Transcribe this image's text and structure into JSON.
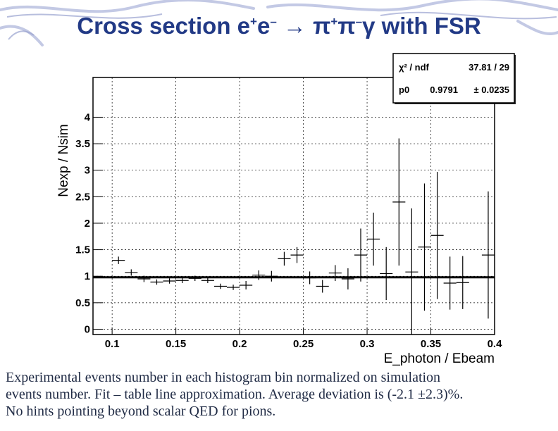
{
  "slide": {
    "title_parts": [
      "Cross section e",
      "+",
      "e",
      "–",
      " → π",
      "+",
      "π",
      "–",
      "γ with FSR"
    ],
    "caption_lines": [
      "Experimental events number in each histogram bin normalized on simulation",
      "events number. Fit – table line approximation. Average deviation is (-2.1 ±2.3)%.",
      "No hints pointing beyond scalar QED for pions."
    ]
  },
  "stats": {
    "chi2_label": "χ² / ndf",
    "chi2_value": "37.81 / 29",
    "p0_label": "p0",
    "p0_value": "0.9791",
    "p0_error": "± 0.0235"
  },
  "chart_data": {
    "type": "scatter",
    "xlabel": "E_photon / Ebeam",
    "ylabel": "Nexp / Nsim",
    "xlim": [
      0.085,
      0.4
    ],
    "ylim": [
      -0.1,
      4.75
    ],
    "x_ticks": [
      "0.1",
      "0.15",
      "0.2",
      "0.25",
      "0.3",
      "0.35",
      "0.4"
    ],
    "x_tick_values": [
      0.1,
      0.15,
      0.2,
      0.25,
      0.3,
      0.35,
      0.4
    ],
    "y_ticks": [
      "0",
      "0.5",
      "1",
      "1.5",
      "2",
      "2.5",
      "3",
      "3.5",
      "4"
    ],
    "y_tick_values": [
      0,
      0.5,
      1,
      1.5,
      2,
      2.5,
      3,
      3.5,
      4
    ],
    "grid": true,
    "bin_width": 0.01,
    "fit_value": 0.9791,
    "series": [
      {
        "x": [
          0.105,
          0.115,
          0.125,
          0.135,
          0.145,
          0.155,
          0.165,
          0.175,
          0.185,
          0.195,
          0.205,
          0.215,
          0.225,
          0.235,
          0.245,
          0.255,
          0.265,
          0.275,
          0.285,
          0.295,
          0.305,
          0.315,
          0.325,
          0.335,
          0.345,
          0.355,
          0.365,
          0.375,
          0.395
        ],
        "y": [
          1.3,
          1.07,
          0.95,
          0.89,
          0.91,
          0.92,
          0.96,
          0.92,
          0.81,
          0.79,
          0.83,
          1.02,
          1.0,
          1.33,
          1.4,
          0.97,
          0.81,
          1.06,
          0.95,
          1.4,
          1.7,
          1.05,
          2.4,
          1.08,
          1.55,
          1.77,
          0.87,
          0.88,
          1.4
        ],
        "err": [
          0.07,
          0.06,
          0.06,
          0.05,
          0.05,
          0.05,
          0.05,
          0.05,
          0.05,
          0.05,
          0.08,
          0.09,
          0.1,
          0.13,
          0.15,
          0.12,
          0.12,
          0.15,
          0.2,
          0.5,
          0.5,
          0.5,
          1.2,
          1.2,
          1.2,
          1.2,
          0.5,
          0.5,
          1.2
        ]
      }
    ]
  }
}
